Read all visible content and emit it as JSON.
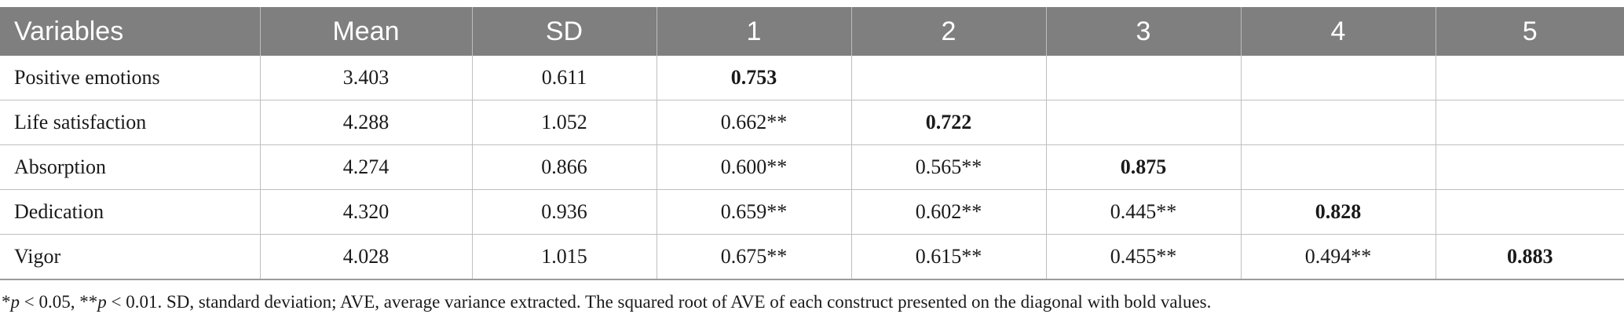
{
  "table": {
    "headers": [
      "Variables",
      "Mean",
      "SD",
      "1",
      "2",
      "3",
      "4",
      "5"
    ],
    "rows": [
      {
        "variable": "Positive emotions",
        "mean": "3.403",
        "sd": "0.611",
        "c1": "0.753",
        "c2": "",
        "c3": "",
        "c4": "",
        "c5": ""
      },
      {
        "variable": "Life satisfaction",
        "mean": "4.288",
        "sd": "1.052",
        "c1": "0.662**",
        "c2": "0.722",
        "c3": "",
        "c4": "",
        "c5": ""
      },
      {
        "variable": "Absorption",
        "mean": "4.274",
        "sd": "0.866",
        "c1": "0.600**",
        "c2": "0.565**",
        "c3": "0.875",
        "c4": "",
        "c5": ""
      },
      {
        "variable": "Dedication",
        "mean": "4.320",
        "sd": "0.936",
        "c1": "0.659**",
        "c2": "0.602**",
        "c3": "0.445**",
        "c4": "0.828",
        "c5": ""
      },
      {
        "variable": "Vigor",
        "mean": "4.028",
        "sd": "1.015",
        "c1": "0.675**",
        "c2": "0.615**",
        "c3": "0.455**",
        "c4": "0.494**",
        "c5": "0.883"
      }
    ]
  },
  "footnote": {
    "star1": "*",
    "p1": "p",
    "text1": " < 0.05, **",
    "p2": "p",
    "text2": " < 0.01. SD, standard deviation; AVE, average variance extracted. The squared root of AVE of each construct presented on the diagonal with bold values."
  }
}
